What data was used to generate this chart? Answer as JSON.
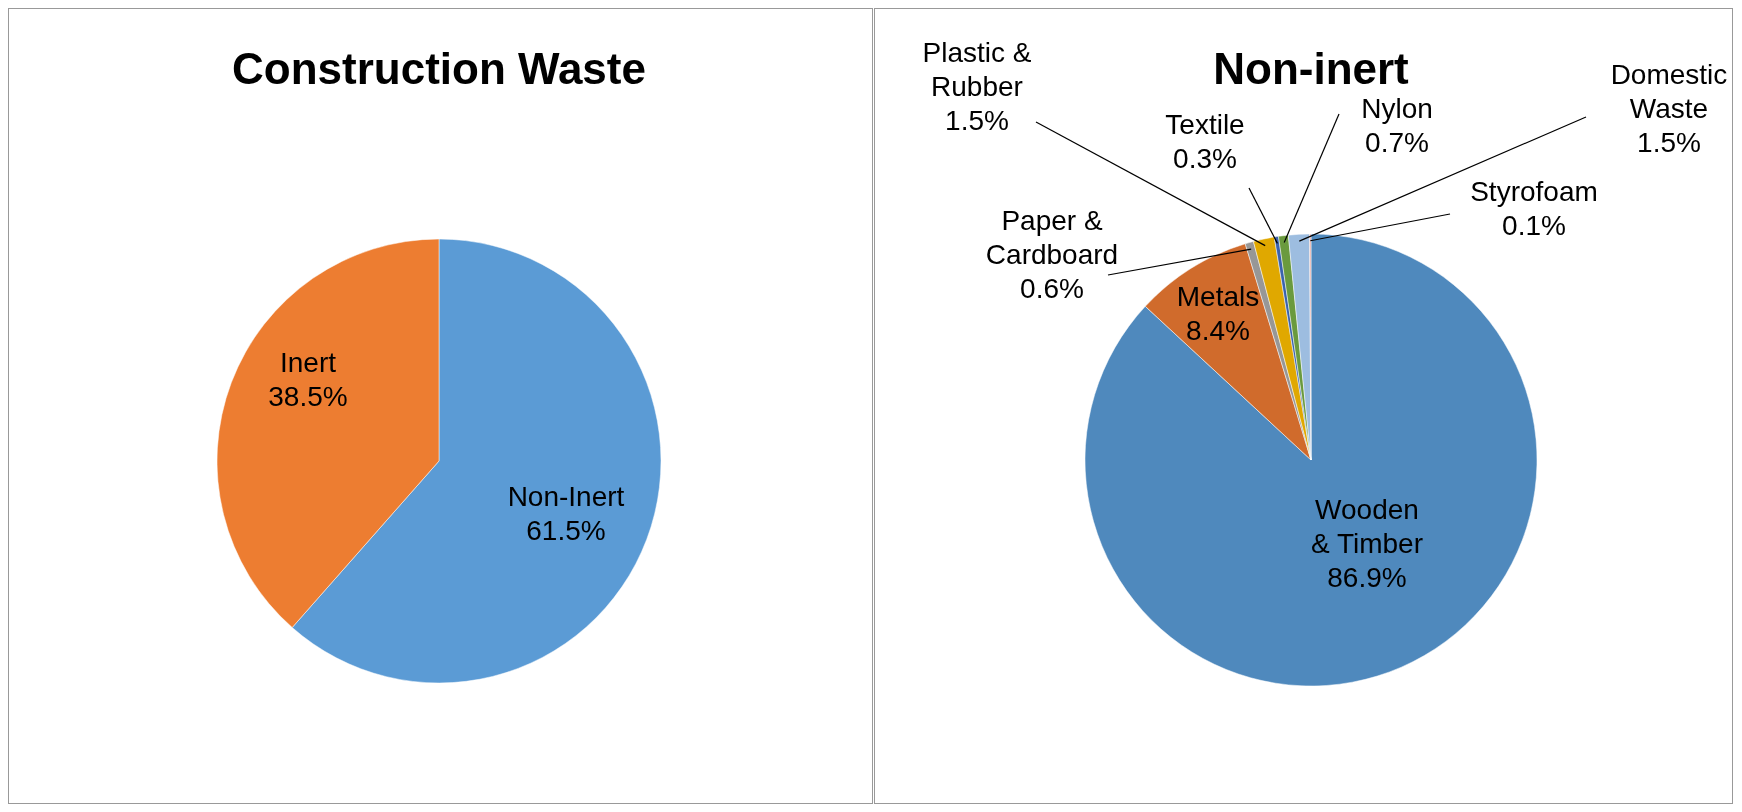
{
  "chart_data": [
    {
      "type": "pie",
      "title": "Construction Waste",
      "categories": [
        "Non-Inert",
        "Inert"
      ],
      "values": [
        61.5,
        38.5
      ],
      "colors": [
        "#5b9bd5",
        "#ed7d31"
      ],
      "value_labels": [
        "61.5%",
        "38.5%"
      ]
    },
    {
      "type": "pie",
      "title": "Non-inert",
      "categories": [
        "Wooden & Timber",
        "Metals",
        "Paper & Cardboard",
        "Plastic & Rubber",
        "Textile",
        "Nylon",
        "Domestic Waste",
        "Styrofoam"
      ],
      "values": [
        86.9,
        8.4,
        0.6,
        1.5,
        0.3,
        0.7,
        1.5,
        0.1
      ],
      "colors": [
        "#4f89bd",
        "#d06b2c",
        "#979797",
        "#e0a800",
        "#3a62ad",
        "#6a9a3e",
        "#9dbde0",
        "#e8a8a0"
      ],
      "value_labels": [
        "86.9%",
        "8.4%",
        "0.6%",
        "1.5%",
        "0.3%",
        "0.7%",
        "1.5%",
        "0.1%"
      ]
    }
  ]
}
